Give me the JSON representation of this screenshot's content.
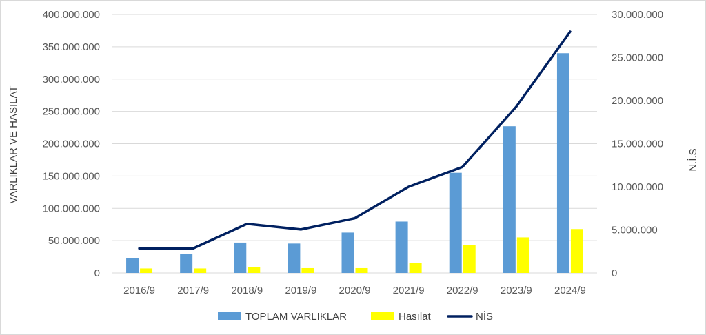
{
  "chart_data": {
    "type": "bar",
    "categories": [
      "2016/9",
      "2017/9",
      "2018/9",
      "2019/9",
      "2020/9",
      "2021/9",
      "2022/9",
      "2023/9",
      "2024/9"
    ],
    "series": [
      {
        "name": "TOPLAM VARLIKLAR",
        "type": "bar",
        "axis": "left",
        "color": "#5B9BD5",
        "values": [
          23000000,
          29000000,
          47000000,
          45500000,
          62500000,
          79500000,
          155000000,
          227000000,
          340000000
        ]
      },
      {
        "name": "Hasılat",
        "type": "bar",
        "axis": "left",
        "color": "#FFFF00",
        "values": [
          7000000,
          7000000,
          9000000,
          7500000,
          7500000,
          15000000,
          43500000,
          55000000,
          68000000
        ]
      },
      {
        "name": "NİS",
        "type": "line",
        "axis": "right",
        "color": "#002060",
        "values": [
          2850000,
          2850000,
          5700000,
          5050000,
          6350000,
          10000000,
          12300000,
          19300000,
          28000000
        ]
      }
    ],
    "ylabel": "VARLIKLAR VE HASILAT",
    "y2label": "N.İ.S",
    "ylim": [
      0,
      400000000
    ],
    "y2lim": [
      0,
      30000000
    ],
    "yticks": [
      "0",
      "50.000.000",
      "100.000.000",
      "150.000.000",
      "200.000.000",
      "250.000.000",
      "300.000.000",
      "350.000.000",
      "400.000.000"
    ],
    "y2ticks": [
      "0",
      "5.000.000",
      "10.000.000",
      "15.000.000",
      "20.000.000",
      "25.000.000",
      "30.000.000"
    ],
    "grid": true,
    "legend": "bottom"
  }
}
